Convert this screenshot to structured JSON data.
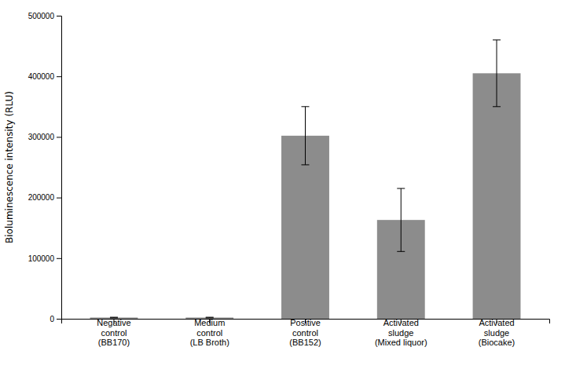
{
  "chart_data": {
    "type": "bar",
    "categories": [
      "Negative\ncontrol\n(BB170)",
      "Medium\ncontrol\n(LB Broth)",
      "Positive\ncontrol\n(BB152)",
      "Activated\nsludge\n(Mixed liquor)",
      "Activated\nsludge\n(Biocake)"
    ],
    "values": [
      2000,
      2000,
      302000,
      163000,
      405000
    ],
    "errors": [
      500,
      500,
      48000,
      52000,
      55000
    ],
    "color": "#8C8C8C",
    "ylabel": "Bioluminescence intensity (RLU)",
    "ylim": [
      0,
      500000
    ],
    "yticks": [
      0,
      100000,
      200000,
      300000,
      400000,
      500000
    ],
    "grid": false
  }
}
